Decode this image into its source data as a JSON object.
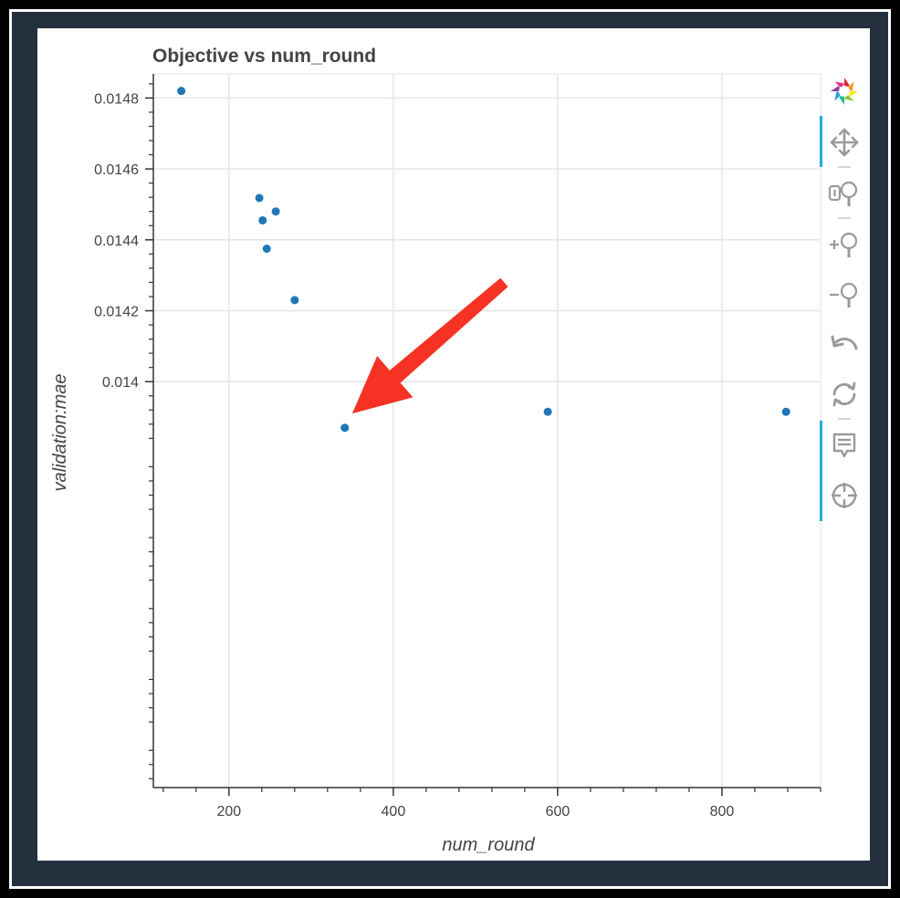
{
  "chart_data": {
    "type": "scatter",
    "title": "Objective vs num_round",
    "xlabel": "num_round",
    "ylabel": "validation:mae",
    "xlim": [
      108,
      920
    ],
    "ylim": [
      0.012855,
      0.014868
    ],
    "xticks": [
      200,
      400,
      600,
      800
    ],
    "xtick_labels": [
      "200",
      "400",
      "600",
      "800"
    ],
    "yticks": [
      0.014,
      0.0142,
      0.0144,
      0.0146,
      0.0148
    ],
    "ytick_labels": [
      "0.014",
      "0.0142",
      "0.0144",
      "0.0146",
      "0.0148"
    ],
    "grid": true,
    "marker_color": "#1f77b4",
    "points": [
      {
        "x": 142,
        "y": 0.01482
      },
      {
        "x": 237,
        "y": 0.014518
      },
      {
        "x": 241,
        "y": 0.014455
      },
      {
        "x": 257,
        "y": 0.01448
      },
      {
        "x": 246,
        "y": 0.014375
      },
      {
        "x": 280,
        "y": 0.01423
      },
      {
        "x": 341,
        "y": 0.01387
      },
      {
        "x": 588,
        "y": 0.013915
      },
      {
        "x": 878,
        "y": 0.013915
      }
    ],
    "annotation": {
      "type": "arrow",
      "color": "#f53224",
      "from": {
        "x": 535,
        "y": 0.01428
      },
      "to": {
        "x": 350,
        "y": 0.01391
      }
    }
  },
  "toolbar": {
    "tools": [
      "bokeh-logo-icon",
      "pan-icon",
      "box-zoom-icon",
      "zoom-in-icon",
      "zoom-out-icon",
      "undo-icon",
      "reset-icon",
      "hover-icon",
      "crosshair-icon"
    ]
  }
}
